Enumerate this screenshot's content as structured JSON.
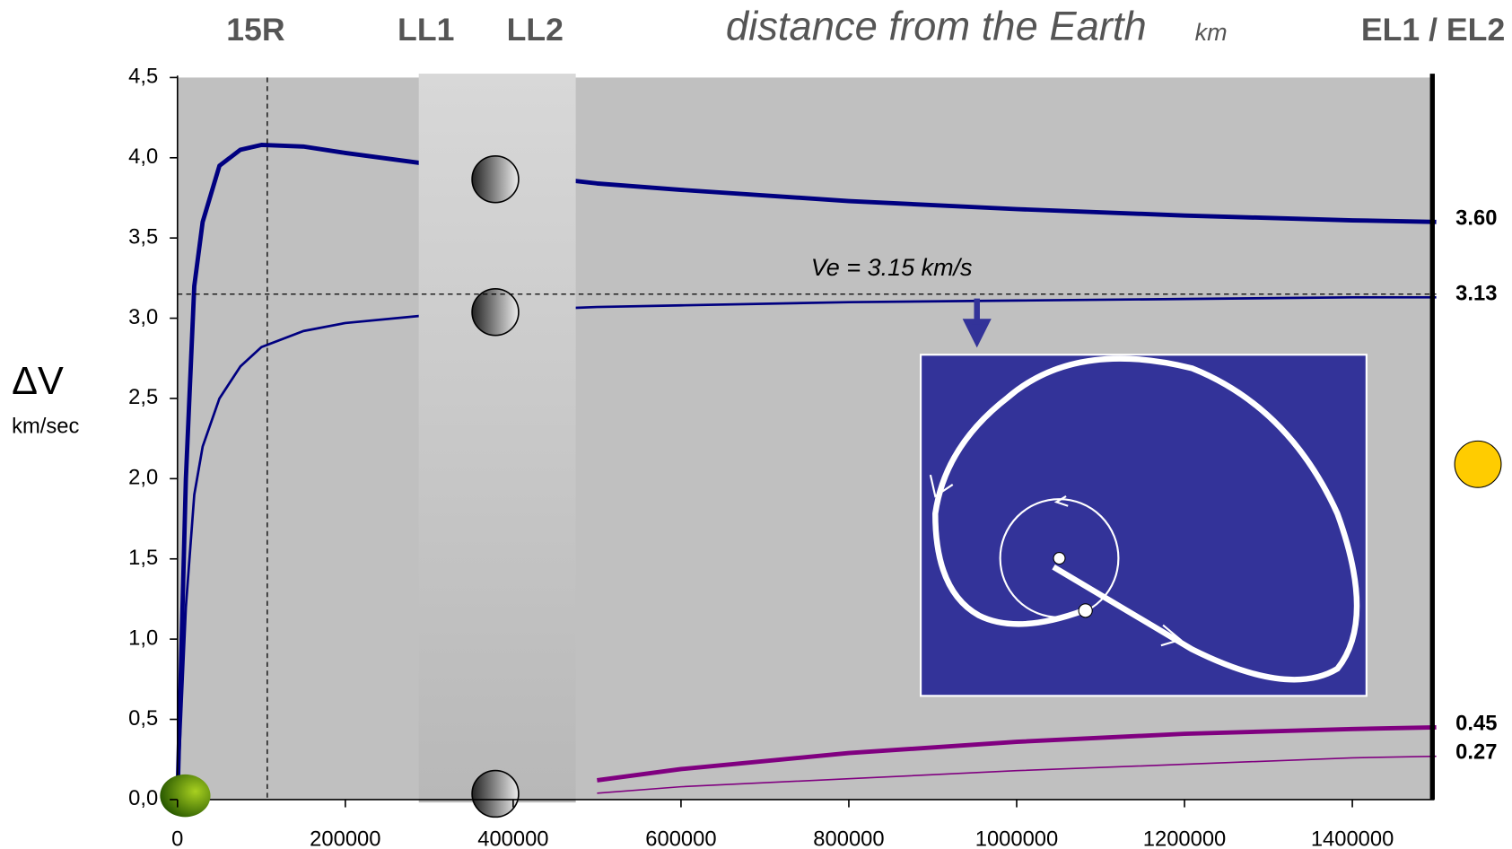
{
  "chart_data": {
    "type": "line",
    "title": "distance from the Earth",
    "title_unit": "km",
    "y_label": "ΔV",
    "y_unit": "km/sec",
    "top_labels": [
      {
        "value": 107000,
        "label": "15R"
      },
      {
        "value": 310000,
        "label": "LL1"
      },
      {
        "value": 440000,
        "label": "LL2"
      },
      {
        "value": 1500000,
        "label": "EL1 / EL2"
      }
    ],
    "x": [
      0,
      10000,
      20000,
      30000,
      50000,
      75000,
      100000,
      150000,
      200000,
      300000,
      400000,
      500000,
      600000,
      800000,
      1000000,
      1200000,
      1400000,
      1500000
    ],
    "series": [
      {
        "color": "#000080",
        "values": [
          0,
          2.0,
          3.2,
          3.6,
          3.95,
          4.05,
          4.08,
          4.07,
          4.03,
          3.96,
          3.9,
          3.84,
          3.8,
          3.73,
          3.68,
          3.64,
          3.61,
          3.6
        ],
        "value_labels": [
          null,
          null,
          null,
          null,
          null,
          null,
          null,
          null,
          null,
          null,
          null,
          null,
          null,
          null,
          null,
          null,
          null,
          "3.60"
        ]
      },
      {
        "color": "#000080",
        "values": [
          0,
          1.2,
          1.9,
          2.2,
          2.5,
          2.7,
          2.82,
          2.92,
          2.97,
          3.02,
          3.05,
          3.07,
          3.08,
          3.1,
          3.11,
          3.12,
          3.13,
          3.13
        ],
        "value_labels": [
          null,
          null,
          null,
          null,
          null,
          null,
          null,
          null,
          null,
          null,
          null,
          null,
          null,
          null,
          null,
          null,
          null,
          "3.13"
        ]
      },
      {
        "color": "#800080",
        "values": [
          null,
          null,
          null,
          null,
          null,
          null,
          null,
          null,
          null,
          null,
          null,
          0.12,
          0.19,
          0.29,
          0.36,
          0.41,
          0.44,
          0.45
        ],
        "value_labels": [
          null,
          null,
          null,
          null,
          null,
          null,
          null,
          null,
          null,
          null,
          null,
          null,
          null,
          null,
          null,
          null,
          null,
          "0.45"
        ]
      },
      {
        "color": "#800080",
        "values": [
          null,
          null,
          null,
          null,
          null,
          null,
          null,
          null,
          null,
          null,
          null,
          0.04,
          0.08,
          0.13,
          0.18,
          0.22,
          0.26,
          0.27
        ],
        "value_labels": [
          null,
          null,
          null,
          null,
          null,
          null,
          null,
          null,
          null,
          null,
          null,
          null,
          null,
          null,
          null,
          null,
          null,
          "0.27"
        ]
      }
    ],
    "reference_line": {
      "value": 3.15,
      "label": "Ve = 3.15 km/s"
    },
    "xlim": [
      0,
      1500000
    ],
    "ylim": [
      0,
      4.5
    ],
    "xticks": [
      0,
      200000,
      400000,
      600000,
      800000,
      1000000,
      1200000,
      1400000
    ],
    "yticks": [
      {
        "value": 0,
        "label": "0,0"
      },
      {
        "value": 0.5,
        "label": "0,5"
      },
      {
        "value": 1,
        "label": "1,0"
      },
      {
        "value": 1.5,
        "label": "1,5"
      },
      {
        "value": 2,
        "label": "2,0"
      },
      {
        "value": 2.5,
        "label": "2,5"
      },
      {
        "value": 3,
        "label": "3,0"
      },
      {
        "value": 3.5,
        "label": "3,5"
      },
      {
        "value": 4,
        "label": "4,0"
      },
      {
        "value": 4.5,
        "label": "4,5"
      }
    ]
  }
}
